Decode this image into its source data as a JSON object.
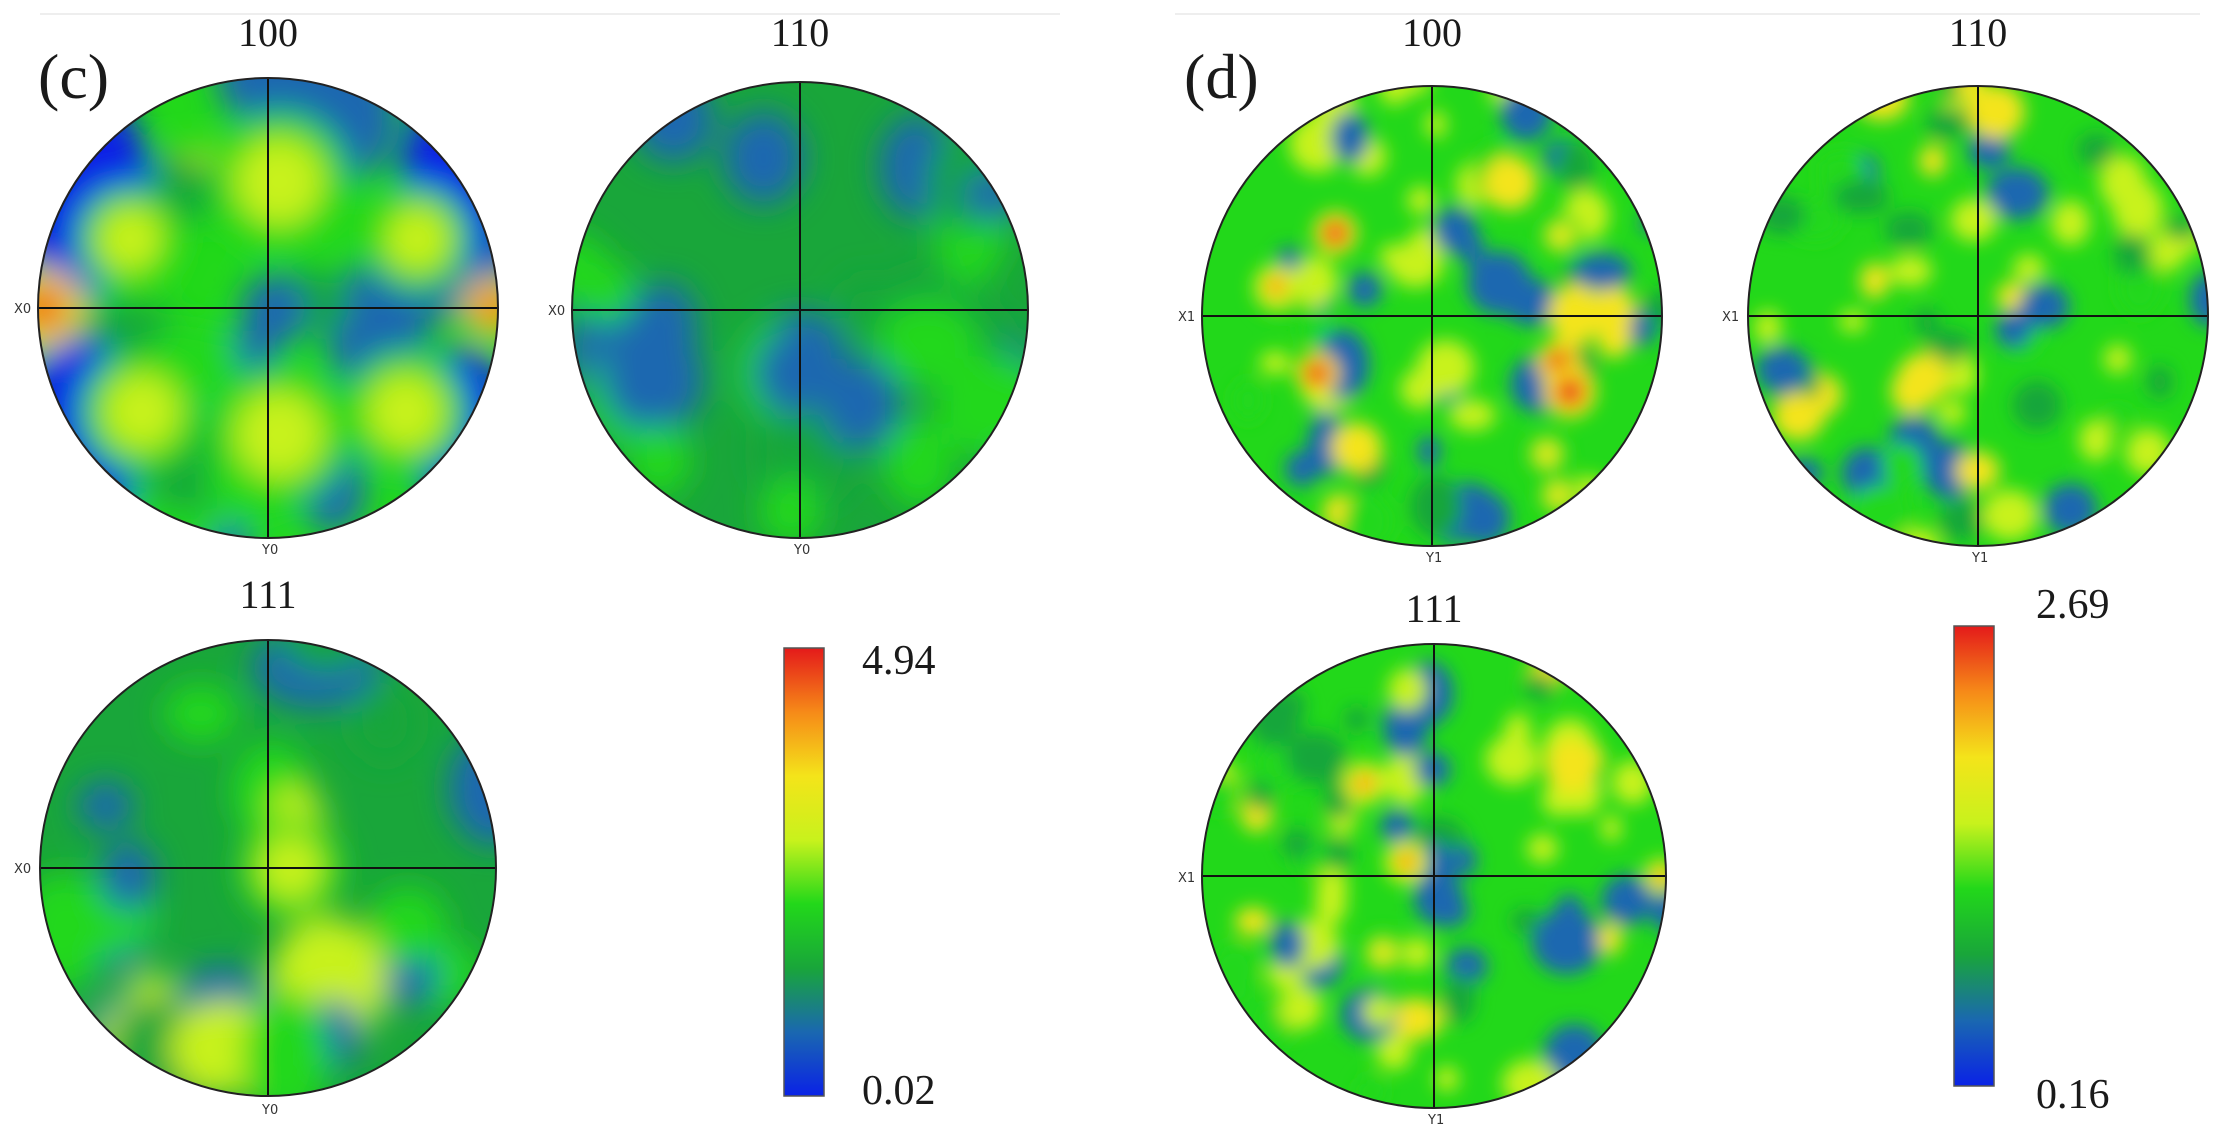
{
  "panels": [
    {
      "label": "(c)",
      "plots": [
        {
          "title": "100",
          "x_axis": "X0",
          "y_axis": "Y0",
          "seed": 11,
          "profile": "c100"
        },
        {
          "title": "110",
          "x_axis": "X0",
          "y_axis": "Y0",
          "seed": 23,
          "profile": "c110"
        },
        {
          "title": "111",
          "x_axis": "X0",
          "y_axis": "Y0",
          "seed": 37,
          "profile": "c111"
        }
      ],
      "colorbar": {
        "max_label": "4.94",
        "min_label": "0.02",
        "max": 4.94,
        "min": 0.02
      }
    },
    {
      "label": "(d)",
      "plots": [
        {
          "title": "100",
          "x_axis": "X1",
          "y_axis": "Y1",
          "seed": 53,
          "profile": "d100"
        },
        {
          "title": "110",
          "x_axis": "X1",
          "y_axis": "Y1",
          "seed": 71,
          "profile": "d110"
        },
        {
          "title": "111",
          "x_axis": "X1",
          "y_axis": "Y1",
          "seed": 89,
          "profile": "d111"
        }
      ],
      "colorbar": {
        "max_label": "2.69",
        "min_label": "0.16",
        "max": 2.69,
        "min": 0.16
      }
    }
  ],
  "colormap": [
    "#0a22e6",
    "#1a68b0",
    "#19a63a",
    "#22d81a",
    "#c8f21c",
    "#f4e41a",
    "#f68a18",
    "#e41a1a"
  ]
}
